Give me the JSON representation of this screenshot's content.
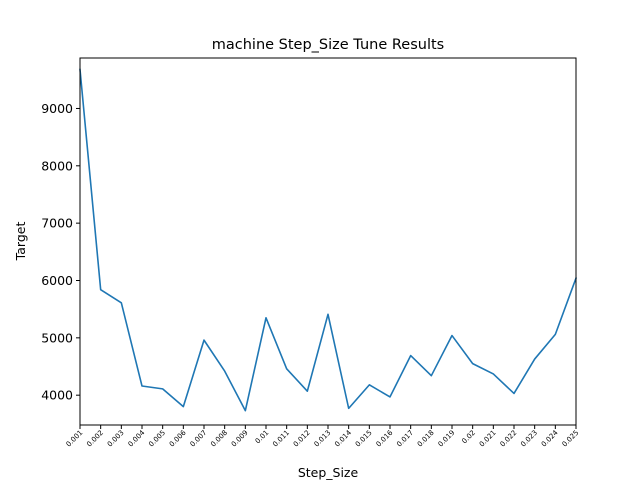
{
  "chart_data": {
    "type": "line",
    "title": "machine Step_Size Tune Results",
    "xlabel": "Step_Size",
    "ylabel": "Target",
    "categories": [
      "0.001",
      "0.002",
      "0.003",
      "0.004",
      "0.005",
      "0.006",
      "0.007",
      "0.008",
      "0.009",
      "0.01",
      "0.011",
      "0.012",
      "0.013",
      "0.014",
      "0.015",
      "0.016",
      "0.017",
      "0.018",
      "0.019",
      "0.02",
      "0.021",
      "0.022",
      "0.023",
      "0.024",
      "0.025"
    ],
    "x": [
      0.001,
      0.002,
      0.003,
      0.004,
      0.005,
      0.006,
      0.007,
      0.008,
      0.009,
      0.01,
      0.011,
      0.012,
      0.013,
      0.014,
      0.015,
      0.016,
      0.017,
      0.018,
      0.019,
      0.02,
      0.021,
      0.022,
      0.023,
      0.024,
      0.025
    ],
    "series": [
      {
        "values": [
          9680,
          5840,
          5610,
          4160,
          4110,
          3800,
          4960,
          4420,
          3730,
          5350,
          4460,
          4070,
          5410,
          3770,
          4180,
          3970,
          4690,
          4340,
          5040,
          4550,
          4370,
          4030,
          4630,
          5060,
          6040
        ],
        "color": "#1f77b4"
      }
    ],
    "xlim": [
      0.001,
      0.025
    ],
    "ylim": [
      3480,
      9880
    ],
    "yticks": [
      4000,
      5000,
      6000,
      7000,
      8000,
      9000
    ],
    "grid": false,
    "legend": "none"
  }
}
